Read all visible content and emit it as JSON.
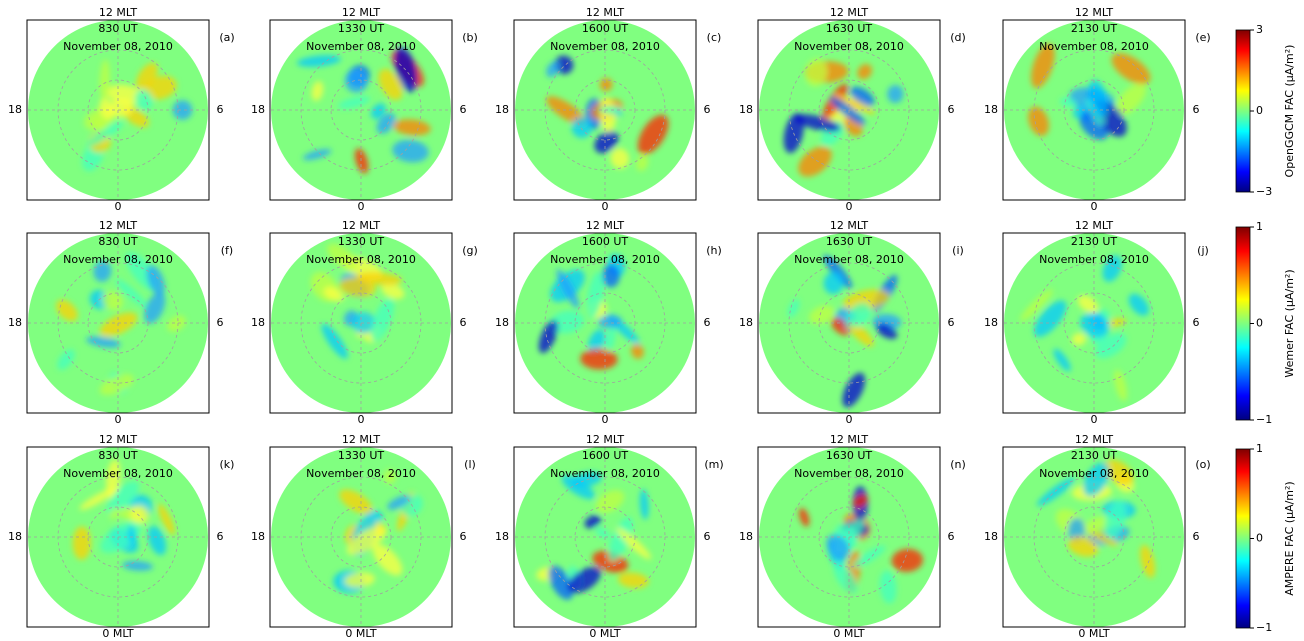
{
  "panels": [
    {
      "top": "12 MLT",
      "time": "830 UT",
      "date": "November 08, 2010",
      "letter": "(a)",
      "left": "18",
      "right": "6",
      "bottom": "0"
    },
    {
      "top": "12 MLT",
      "time": "1330 UT",
      "date": "November 08, 2010",
      "letter": "(b)",
      "left": "18",
      "right": "6",
      "bottom": "0"
    },
    {
      "top": "12 MLT",
      "time": "1600 UT",
      "date": "November 08, 2010",
      "letter": "(c)",
      "left": "18",
      "right": "6",
      "bottom": "0"
    },
    {
      "top": "12 MLT",
      "time": "1630 UT",
      "date": "November 08, 2010",
      "letter": "(d)",
      "left": "18",
      "right": "6",
      "bottom": "0"
    },
    {
      "top": "12 MLT",
      "time": "2130 UT",
      "date": "November 08, 2010",
      "letter": "(e)",
      "left": "18",
      "right": "6",
      "bottom": "0"
    },
    {
      "top": "12 MLT",
      "time": "830 UT",
      "date": "November 08, 2010",
      "letter": "(f)",
      "left": "18",
      "right": "6",
      "bottom": "0"
    },
    {
      "top": "12 MLT",
      "time": "1330 UT",
      "date": "November 08, 2010",
      "letter": "(g)",
      "left": "18",
      "right": "6",
      "bottom": "0"
    },
    {
      "top": "12 MLT",
      "time": "1600 UT",
      "date": "November 08, 2010",
      "letter": "(h)",
      "left": "18",
      "right": "6",
      "bottom": "0"
    },
    {
      "top": "12 MLT",
      "time": "1630 UT",
      "date": "November 08, 2010",
      "letter": "(i)",
      "left": "18",
      "right": "6",
      "bottom": "0"
    },
    {
      "top": "12 MLT",
      "time": "2130 UT",
      "date": "November 08, 2010",
      "letter": "(j)",
      "left": "18",
      "right": "6",
      "bottom": "0"
    },
    {
      "top": "12 MLT",
      "time": "830 UT",
      "date": "November 08, 2010",
      "letter": "(k)",
      "left": "18",
      "right": "6",
      "bottom": "0 MLT"
    },
    {
      "top": "12 MLT",
      "time": "1330 UT",
      "date": "November 08, 2010",
      "letter": "(l)",
      "left": "18",
      "right": "6",
      "bottom": "0 MLT"
    },
    {
      "top": "12 MLT",
      "time": "1600 UT",
      "date": "November 08, 2010",
      "letter": "(m)",
      "left": "18",
      "right": "6",
      "bottom": "0 MLT"
    },
    {
      "top": "12 MLT",
      "time": "1630 UT",
      "date": "November 08, 2010",
      "letter": "(n)",
      "left": "18",
      "right": "6",
      "bottom": "0 MLT"
    },
    {
      "top": "12 MLT",
      "time": "2130 UT",
      "date": "November 08, 2010",
      "letter": "(o)",
      "left": "18",
      "right": "6",
      "bottom": "0 MLT"
    }
  ],
  "colorbars": [
    {
      "label": "OpenGGCM  FAC (μA/m²)",
      "ylim": [
        -3,
        3
      ],
      "yticks": [
        {
          "value": -3,
          "label": "−3"
        },
        0,
        3
      ]
    },
    {
      "label": "Wemer  FAC (μA/m²)",
      "ylim": [
        -1,
        1
      ],
      "yticks": [
        {
          "value": -1,
          "label": "−1"
        },
        0,
        1
      ]
    },
    {
      "label": "AMPERE  FAC (μA/m²)",
      "ylim": [
        -1,
        1
      ],
      "yticks": [
        {
          "value": -1,
          "label": "−1"
        },
        0,
        1
      ]
    }
  ]
}
